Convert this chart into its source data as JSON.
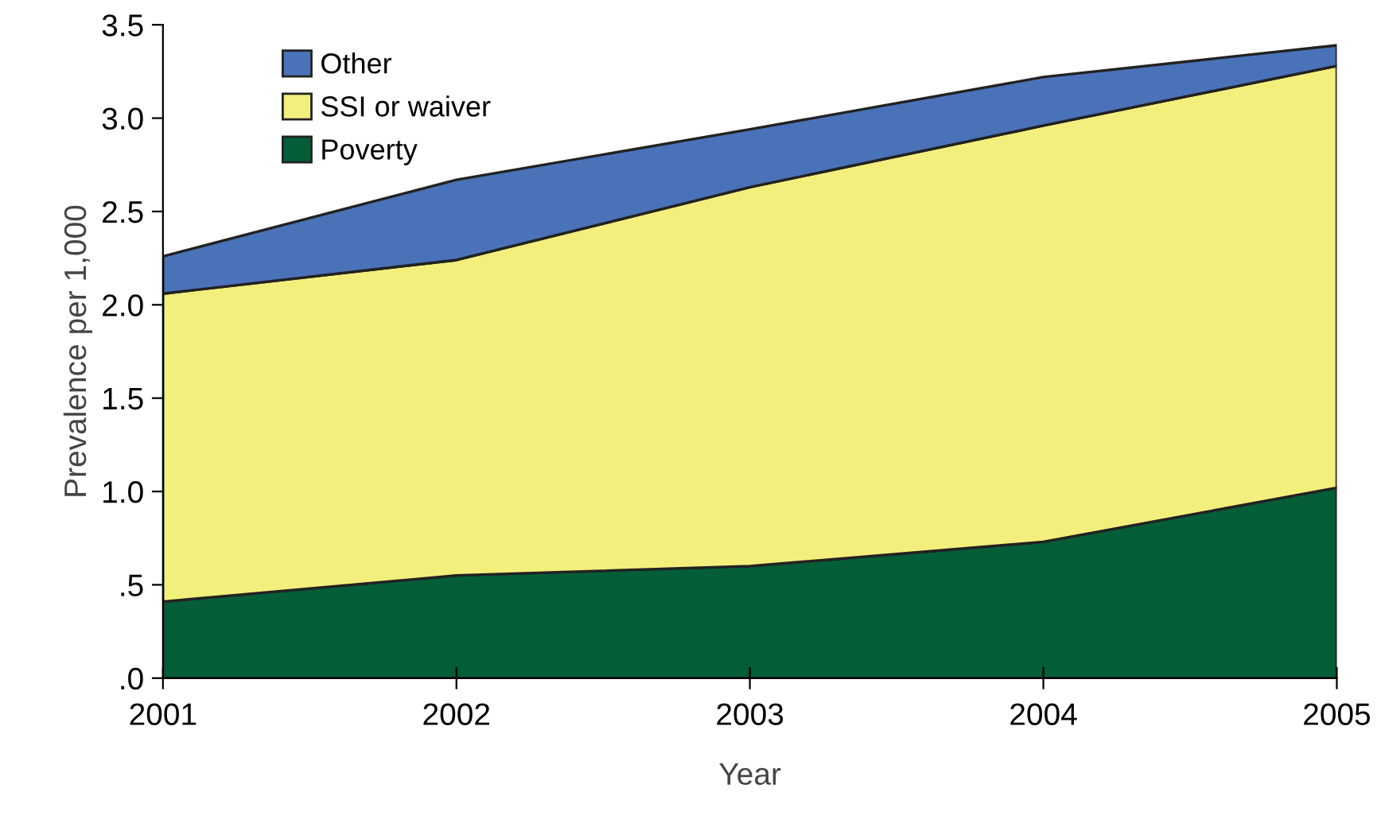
{
  "chart_data": {
    "type": "area",
    "stacked": true,
    "xlabel": "Year",
    "ylabel": "Prevalence per 1,000",
    "x": [
      2001,
      2002,
      2003,
      2004,
      2005
    ],
    "series": [
      {
        "name": "Poverty",
        "color": "#035e38",
        "values": [
          0.41,
          0.55,
          0.6,
          0.73,
          1.02
        ]
      },
      {
        "name": "SSI or waiver",
        "color": "#f3ef7c",
        "values": [
          1.65,
          1.69,
          2.03,
          2.23,
          2.26
        ]
      },
      {
        "name": "Other",
        "color": "#4a72b8",
        "values": [
          0.2,
          0.43,
          0.31,
          0.26,
          0.11
        ]
      }
    ],
    "xlim": [
      2001,
      2005
    ],
    "xticks": [
      2001,
      2002,
      2003,
      2004,
      2005
    ],
    "ylim": [
      0,
      3.5
    ],
    "yticks": [
      {
        "value": 0,
        "label": ".0"
      },
      {
        "value": 0.5,
        "label": ".5"
      },
      {
        "value": 1,
        "label": "1.0"
      },
      1.5,
      {
        "value": 2,
        "label": "2.0"
      },
      2.5,
      {
        "value": 3,
        "label": "3.0"
      },
      3.5
    ],
    "legend": "top left",
    "grid": false
  }
}
